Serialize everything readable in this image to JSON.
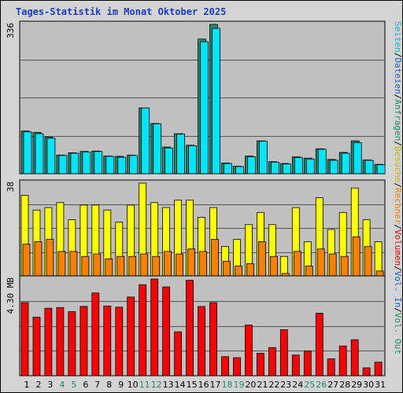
{
  "chart_data": {
    "type": "bar",
    "title": "Tages-Statistik im Monat Oktober 2025",
    "categories": [
      "1",
      "2",
      "3",
      "4",
      "5",
      "6",
      "7",
      "8",
      "9",
      "10",
      "11",
      "12",
      "13",
      "14",
      "15",
      "16",
      "17",
      "18",
      "19",
      "20",
      "21",
      "22",
      "23",
      "24",
      "25",
      "26",
      "27",
      "28",
      "29",
      "30",
      "31"
    ],
    "weekend_categories": [
      "4",
      "5",
      "11",
      "12",
      "18",
      "19",
      "25",
      "26"
    ],
    "panels": [
      {
        "id": "top",
        "max_label": "336",
        "ymax": 336,
        "right_labels": [
          "Seiten",
          "Dateien",
          "Anfragen"
        ],
        "series": [
          {
            "name": "Anfragen",
            "color": "#1f8a6e",
            "values": [
              96,
              93,
              82,
              42,
              47,
              50,
              51,
              40,
              39,
              42,
              148,
              113,
              60,
              90,
              64,
              303,
              336,
              24,
              17,
              40,
              74,
              27,
              23,
              38,
              35,
              56,
              32,
              48,
              74,
              31,
              21
            ]
          },
          {
            "name": "Dateien",
            "color": "#00e5ff",
            "values": [
              94,
              90,
              80,
              41,
              46,
              49,
              50,
              39,
              37,
              41,
              148,
              112,
              58,
              89,
              63,
              297,
              327,
              23,
              16,
              38,
              73,
              26,
              22,
              36,
              33,
              55,
              30,
              46,
              70,
              30,
              20
            ]
          }
        ]
      },
      {
        "id": "middle",
        "max_label": "38",
        "ymax": 38,
        "right_labels": [
          "Besuche",
          "Rechner"
        ],
        "series": [
          {
            "name": "Besuche",
            "color": "#ffff00",
            "values": [
              33,
              27,
              28,
              30,
              23,
              29,
              29,
              27,
              22,
              29,
              38,
              30,
              28,
              31,
              31,
              24,
              28,
              12,
              15,
              21,
              26,
              21,
              8,
              28,
              14,
              32,
              19,
              26,
              36,
              23,
              14
            ]
          },
          {
            "name": "Rechner",
            "color": "#ff8000",
            "values": [
              13,
              14,
              15,
              10,
              10,
              8,
              9,
              7,
              8,
              8,
              9,
              8,
              10,
              9,
              11,
              10,
              15,
              6,
              4,
              5,
              14,
              8,
              1,
              10,
              4,
              11,
              9,
              8,
              16,
              12,
              2
            ]
          }
        ]
      },
      {
        "id": "bottom",
        "max_label": "4.30 MB",
        "ymax": 4.3,
        "right_labels": [
          "Volumen",
          "Vol. In",
          "Vol. Out"
        ],
        "series": [
          {
            "name": "Volumen",
            "color": "#ff0000",
            "values": [
              3.25,
              2.6,
              3.0,
              3.03,
              2.85,
              3.08,
              3.68,
              3.1,
              3.05,
              3.5,
              4.05,
              4.3,
              3.95,
              1.95,
              4.25,
              3.08,
              3.25,
              0.85,
              0.8,
              2.25,
              1.0,
              1.25,
              2.05,
              0.92,
              1.1,
              2.78,
              0.75,
              1.32,
              1.6,
              0.35,
              0.6
            ]
          }
        ]
      }
    ],
    "right_axis_separator": "/",
    "right_axis_colors": {
      "Seiten": "#00b4cc",
      "Dateien": "#2060c8",
      "Anfragen": "#1f8a6e",
      "Besuche": "#c8b400",
      "Rechner": "#ff8000",
      "Volumen": "#e00000",
      "Vol. In": "#2060c8",
      "Vol. Out": "#1f8a6e"
    },
    "colors": {
      "title": "#1a3cbf",
      "background": "#d4d4d4",
      "plot_background": "#c0c0c0",
      "gridline": "#555555",
      "weekend_label": "#1f8a6e",
      "weekday_label": "#000000"
    }
  }
}
